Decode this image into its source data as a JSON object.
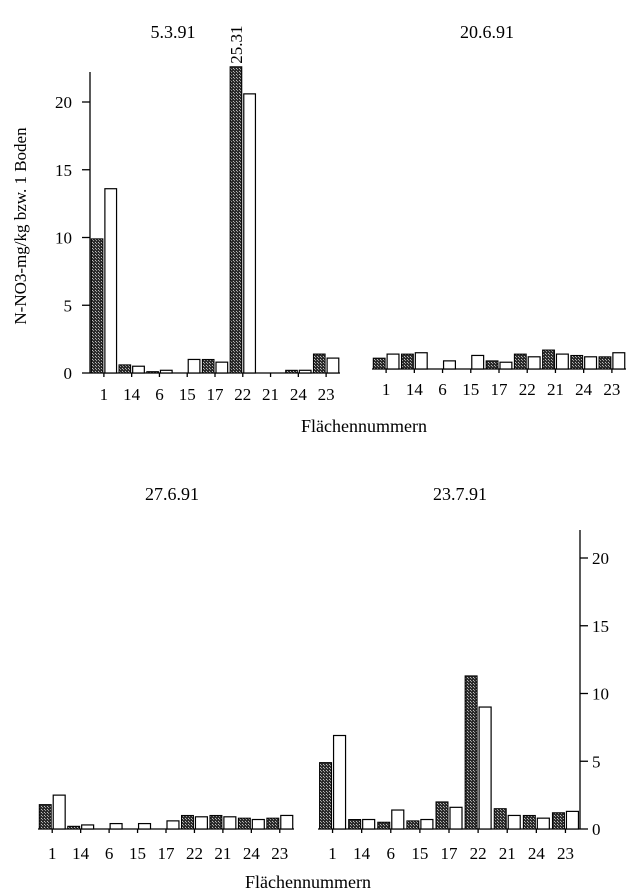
{
  "ylabel": "N-NO3-mg/kg bzw. 1 Boden",
  "xlabel": "Flächennummern",
  "colors": {
    "dark_bar": "#2b2b2b",
    "light_bar": "#ffffff"
  },
  "chart_data": [
    {
      "type": "bar",
      "title": "5.3.91",
      "categories": [
        "1",
        "14",
        "6",
        "15",
        "17",
        "22",
        "21",
        "24",
        "23"
      ],
      "ylim": [
        0,
        22
      ],
      "yticks": [
        0,
        5,
        10,
        15,
        20
      ],
      "yaxis": "left",
      "series": [
        {
          "values": [
            9.9,
            0.6,
            0.1,
            0,
            1.0,
            22.6,
            0,
            0.2,
            1.4
          ]
        },
        {
          "values": [
            13.6,
            0.5,
            0.2,
            1.0,
            0.8,
            20.6,
            0,
            0.2,
            1.1
          ]
        }
      ],
      "annotations": [
        {
          "category": "22",
          "text": "25.31"
        }
      ]
    },
    {
      "type": "bar",
      "title": "20.6.91",
      "categories": [
        "1",
        "14",
        "6",
        "15",
        "17",
        "22",
        "21",
        "24",
        "23"
      ],
      "ylim": [
        0,
        22
      ],
      "series": [
        {
          "values": [
            0.8,
            1.1,
            0,
            0,
            0.6,
            1.1,
            1.4,
            1.0,
            0.9
          ]
        },
        {
          "values": [
            1.1,
            1.2,
            0.6,
            1.0,
            0.5,
            0.9,
            1.1,
            0.9,
            1.2
          ]
        }
      ]
    },
    {
      "type": "bar",
      "title": "27.6.91",
      "categories": [
        "1",
        "14",
        "6",
        "15",
        "17",
        "22",
        "21",
        "24",
        "23"
      ],
      "ylim": [
        0,
        22
      ],
      "series": [
        {
          "values": [
            1.8,
            0.2,
            0,
            0,
            0,
            1.0,
            1.0,
            0.8,
            0.8
          ]
        },
        {
          "values": [
            2.5,
            0.3,
            0.4,
            0.4,
            0.6,
            0.9,
            0.9,
            0.7,
            1.0
          ]
        }
      ]
    },
    {
      "type": "bar",
      "title": "23.7.91",
      "categories": [
        "1",
        "14",
        "6",
        "15",
        "17",
        "22",
        "21",
        "24",
        "23"
      ],
      "ylim": [
        0,
        22
      ],
      "yticks": [
        0,
        5,
        10,
        15,
        20
      ],
      "yaxis": "right",
      "series": [
        {
          "values": [
            4.9,
            0.7,
            0.5,
            0.6,
            2.0,
            11.3,
            1.5,
            1.0,
            1.2
          ]
        },
        {
          "values": [
            6.9,
            0.7,
            1.4,
            0.7,
            1.6,
            9.0,
            1.0,
            0.8,
            1.3
          ]
        }
      ]
    }
  ]
}
